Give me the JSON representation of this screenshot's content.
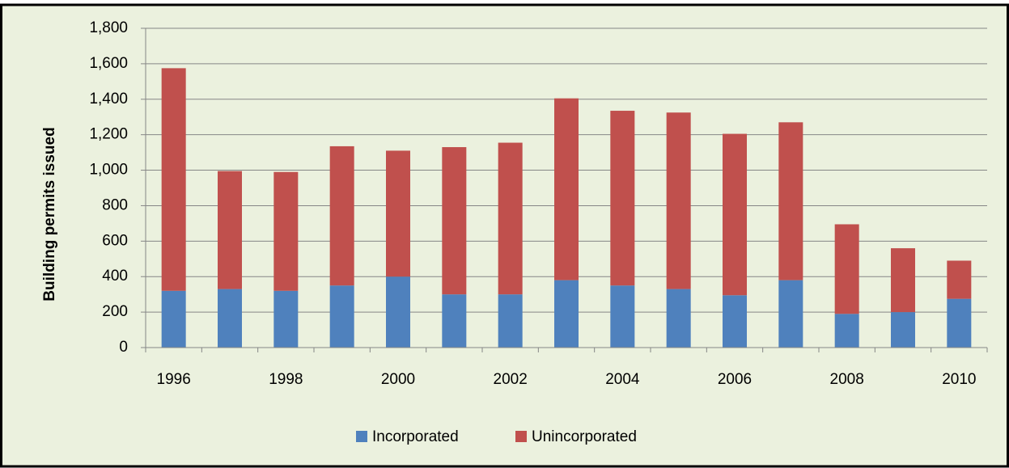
{
  "chart_data": {
    "type": "stacked_bar",
    "y_axis_label": "Building permits issued",
    "categories": [
      "1996",
      null,
      "1998",
      null,
      "2000",
      null,
      "2002",
      null,
      "2004",
      null,
      "2006",
      null,
      "2008",
      null,
      "2010"
    ],
    "series": [
      {
        "name": "Incorporated",
        "color": "#4f81bd",
        "values": [
          320,
          330,
          320,
          350,
          400,
          300,
          300,
          380,
          350,
          330,
          295,
          380,
          190,
          200,
          275
        ]
      },
      {
        "name": "Unincorporated",
        "color": "#c0504d",
        "values": [
          1255,
          665,
          670,
          785,
          710,
          830,
          855,
          1025,
          985,
          995,
          910,
          890,
          505,
          360,
          215
        ]
      }
    ],
    "ylim": [
      0,
      1800
    ],
    "yticks": [
      0,
      200,
      400,
      600,
      800,
      {
        "value": 1000,
        "label": "1,000"
      },
      {
        "value": 1200,
        "label": "1,200"
      },
      {
        "value": 1400,
        "label": "1,400"
      },
      {
        "value": 1600,
        "label": "1,600"
      },
      {
        "value": 1800,
        "label": "1,800"
      }
    ],
    "grid": true,
    "legend": "bottom"
  }
}
